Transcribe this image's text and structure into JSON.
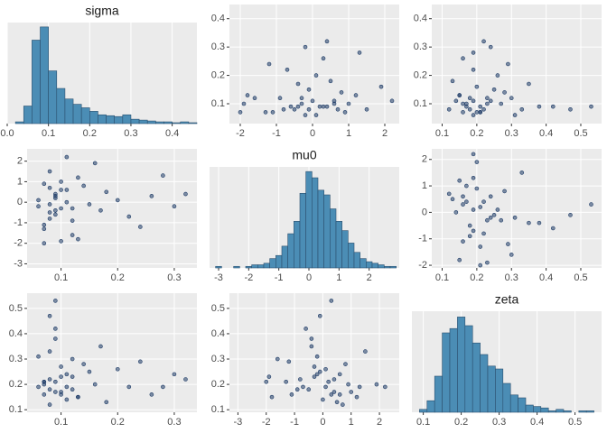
{
  "chart_data": [
    {
      "type": "histogram",
      "title": "sigma",
      "color": "#4b8db5",
      "edge_color": "#2b4f6e",
      "bins": [
        0.02,
        0.04,
        0.06,
        0.08,
        0.1,
        0.12,
        0.14,
        0.16,
        0.18,
        0.2,
        0.22,
        0.24,
        0.26,
        0.28,
        0.3,
        0.32,
        0.34,
        0.36,
        0.38,
        0.4,
        0.42,
        0.44,
        0.46
      ],
      "values": [
        2,
        20,
        95,
        110,
        60,
        40,
        28,
        22,
        18,
        14,
        10,
        9,
        8,
        10,
        5,
        4,
        3,
        2,
        2,
        1,
        2,
        1
      ],
      "xlim": [
        0,
        0.46
      ],
      "xticks": [
        {
          "value": 0,
          "label": "0.0"
        },
        0.1,
        0.2,
        0.3,
        0.4
      ],
      "ylim": [
        0,
        115
      ],
      "grid": true
    },
    {
      "type": "scatter",
      "color": "#1d3b66",
      "x": [
        -0.5,
        0.2,
        -1.1,
        0.6,
        0.1,
        -0.3,
        1.2,
        -0.8,
        0.4,
        -1.6,
        0.9,
        -0.1,
        0.5,
        -0.7,
        1.5,
        -1.9,
        0.3,
        -0.4,
        0.0,
        0.8,
        -1.3,
        -0.2,
        0.7,
        -0.9,
        1.9,
        -0.6,
        0.1,
        1.0,
        -0.2,
        -1.8,
        0.4,
        -0.1,
        2.2,
        -1.2,
        0.3,
        -2.0,
        -0.4,
        0.6,
        1.3,
        -0.3
      ],
      "y": [
        0.08,
        0.09,
        0.07,
        0.11,
        0.06,
        0.1,
        0.13,
        0.08,
        0.09,
        0.12,
        0.07,
        0.15,
        0.18,
        0.22,
        0.08,
        0.1,
        0.26,
        0.09,
        0.11,
        0.14,
        0.07,
        0.3,
        0.08,
        0.12,
        0.16,
        0.09,
        0.2,
        0.1,
        0.06,
        0.13,
        0.32,
        0.08,
        0.11,
        0.24,
        0.09,
        0.07,
        0.17,
        0.1,
        0.28,
        0.12
      ],
      "xlim": [
        -2.3,
        2.4
      ],
      "xticks": [
        -2,
        -1,
        0,
        1,
        2
      ],
      "ylim": [
        0.03,
        0.45
      ],
      "yticks": [
        0.1,
        0.2,
        0.3,
        0.4
      ],
      "grid": true
    },
    {
      "type": "scatter",
      "color": "#1d3b66",
      "x": [
        0.18,
        0.21,
        0.16,
        0.24,
        0.19,
        0.27,
        0.15,
        0.22,
        0.17,
        0.3,
        0.2,
        0.25,
        0.13,
        0.19,
        0.33,
        0.23,
        0.16,
        0.38,
        0.14,
        0.28,
        0.21,
        0.24,
        0.12,
        0.18,
        0.2,
        0.42,
        0.26,
        0.17,
        0.31,
        0.15,
        0.22,
        0.47,
        0.19,
        0.29,
        0.53,
        0.21,
        0.35,
        0.16,
        0.19,
        0.23
      ],
      "y": [
        0.08,
        0.09,
        0.07,
        0.11,
        0.06,
        0.1,
        0.13,
        0.08,
        0.09,
        0.12,
        0.07,
        0.15,
        0.18,
        0.22,
        0.08,
        0.1,
        0.26,
        0.09,
        0.11,
        0.14,
        0.07,
        0.3,
        0.08,
        0.12,
        0.16,
        0.09,
        0.2,
        0.1,
        0.06,
        0.13,
        0.32,
        0.08,
        0.11,
        0.24,
        0.09,
        0.07,
        0.17,
        0.1,
        0.28,
        0.12
      ],
      "xlim": [
        0.07,
        0.56
      ],
      "xticks": [
        0.1,
        0.2,
        0.3,
        0.4,
        0.5
      ],
      "ylim": [
        0.03,
        0.45
      ],
      "yticks": [
        0.1,
        0.2,
        0.3,
        0.4
      ],
      "grid": true
    },
    {
      "type": "scatter",
      "color": "#1d3b66",
      "x": [
        0.08,
        0.09,
        0.07,
        0.11,
        0.06,
        0.1,
        0.13,
        0.08,
        0.09,
        0.12,
        0.07,
        0.15,
        0.18,
        0.22,
        0.08,
        0.1,
        0.26,
        0.09,
        0.11,
        0.14,
        0.07,
        0.3,
        0.08,
        0.12,
        0.16,
        0.09,
        0.2,
        0.1,
        0.06,
        0.13,
        0.32,
        0.08,
        0.11,
        0.24,
        0.09,
        0.07,
        0.17,
        0.1,
        0.28,
        0.12
      ],
      "y": [
        -0.5,
        0.2,
        -1.1,
        0.6,
        0.1,
        -0.3,
        1.2,
        -0.8,
        0.4,
        -1.6,
        0.9,
        -0.1,
        0.5,
        -0.7,
        1.5,
        -1.9,
        0.3,
        -0.4,
        0.0,
        0.8,
        -1.3,
        -0.2,
        0.7,
        -0.9,
        1.9,
        -0.6,
        0.1,
        1.0,
        -0.2,
        -1.8,
        0.4,
        -0.1,
        2.2,
        -1.2,
        0.3,
        -2.0,
        -0.4,
        0.6,
        1.3,
        -0.3
      ],
      "xlim": [
        0.04,
        0.34
      ],
      "xticks": [
        0.1,
        0.2,
        0.3
      ],
      "ylim": [
        -3.2,
        2.6
      ],
      "yticks": [
        -3,
        -2,
        -1,
        0,
        1,
        2
      ],
      "grid": true
    },
    {
      "type": "histogram",
      "title": "mu0",
      "color": "#4b8db5",
      "edge_color": "#2b4f6e",
      "bins": [
        -3.1,
        -2.9,
        -2.7,
        -2.5,
        -2.3,
        -2.1,
        -1.9,
        -1.7,
        -1.5,
        -1.3,
        -1.1,
        -0.9,
        -0.7,
        -0.5,
        -0.3,
        -0.1,
        0.1,
        0.3,
        0.5,
        0.7,
        0.9,
        1.1,
        1.3,
        1.5,
        1.7,
        1.9,
        2.1,
        2.3,
        2.5,
        2.7,
        2.9
      ],
      "values": [
        1,
        0,
        0,
        1,
        0,
        1,
        2,
        2,
        3,
        6,
        8,
        14,
        22,
        30,
        48,
        62,
        58,
        50,
        47,
        38,
        30,
        24,
        16,
        10,
        6,
        4,
        3,
        2,
        1,
        1
      ],
      "xlim": [
        -3.3,
        3.0
      ],
      "xticks": [
        -3,
        -2,
        -1,
        0,
        1,
        2
      ],
      "ylim": [
        0,
        65
      ],
      "grid": true
    },
    {
      "type": "scatter",
      "color": "#1d3b66",
      "x": [
        0.18,
        0.21,
        0.16,
        0.24,
        0.19,
        0.27,
        0.15,
        0.22,
        0.17,
        0.3,
        0.2,
        0.25,
        0.13,
        0.19,
        0.33,
        0.23,
        0.16,
        0.38,
        0.14,
        0.28,
        0.21,
        0.24,
        0.12,
        0.18,
        0.2,
        0.42,
        0.26,
        0.17,
        0.31,
        0.15,
        0.22,
        0.47,
        0.19,
        0.29,
        0.53,
        0.21,
        0.35,
        0.16,
        0.19,
        0.23
      ],
      "y": [
        -0.5,
        0.2,
        -1.1,
        0.6,
        0.1,
        -0.3,
        1.2,
        -0.8,
        0.4,
        -1.6,
        0.9,
        -0.1,
        0.5,
        -0.7,
        1.5,
        -1.9,
        0.3,
        -0.4,
        0.0,
        0.8,
        -1.3,
        -0.2,
        0.7,
        -0.9,
        1.9,
        -0.6,
        0.1,
        1.0,
        -0.2,
        -1.8,
        0.4,
        -0.1,
        2.2,
        -1.2,
        0.3,
        -2.0,
        -0.4,
        0.6,
        1.3,
        -0.3
      ],
      "xlim": [
        0.07,
        0.56
      ],
      "xticks": [
        0.1,
        0.2,
        0.3,
        0.4,
        0.5
      ],
      "ylim": [
        -2.1,
        2.4
      ],
      "yticks": [
        -2,
        -1,
        0,
        1,
        2
      ],
      "grid": true
    },
    {
      "type": "scatter",
      "color": "#1d3b66",
      "x": [
        0.08,
        0.09,
        0.07,
        0.11,
        0.06,
        0.1,
        0.13,
        0.08,
        0.09,
        0.12,
        0.07,
        0.15,
        0.18,
        0.22,
        0.08,
        0.1,
        0.26,
        0.09,
        0.11,
        0.14,
        0.07,
        0.3,
        0.08,
        0.12,
        0.16,
        0.09,
        0.2,
        0.1,
        0.06,
        0.13,
        0.32,
        0.08,
        0.11,
        0.24,
        0.09,
        0.07,
        0.17,
        0.1,
        0.28,
        0.12
      ],
      "y": [
        0.18,
        0.21,
        0.16,
        0.24,
        0.19,
        0.27,
        0.15,
        0.22,
        0.17,
        0.3,
        0.2,
        0.25,
        0.13,
        0.19,
        0.33,
        0.23,
        0.16,
        0.38,
        0.14,
        0.28,
        0.21,
        0.24,
        0.12,
        0.18,
        0.2,
        0.42,
        0.26,
        0.17,
        0.31,
        0.15,
        0.22,
        0.47,
        0.19,
        0.29,
        0.53,
        0.21,
        0.35,
        0.16,
        0.19,
        0.23
      ],
      "xlim": [
        0.04,
        0.34
      ],
      "xticks": [
        0.1,
        0.2,
        0.3
      ],
      "ylim": [
        0.09,
        0.56
      ],
      "yticks": [
        0.1,
        0.2,
        0.3,
        0.4,
        0.5
      ],
      "grid": true
    },
    {
      "type": "scatter",
      "color": "#1d3b66",
      "x": [
        -0.5,
        0.2,
        -1.1,
        0.6,
        0.1,
        -0.3,
        1.2,
        -0.8,
        0.4,
        -1.6,
        0.9,
        -0.1,
        0.5,
        -0.7,
        1.5,
        -1.9,
        0.3,
        -0.4,
        0.0,
        0.8,
        -1.3,
        -0.2,
        0.7,
        -0.9,
        1.9,
        -0.6,
        0.1,
        1.0,
        -0.2,
        -1.8,
        0.4,
        -0.1,
        2.2,
        -1.2,
        0.3,
        -2.0,
        -0.4,
        0.6,
        1.3,
        -0.3
      ],
      "y": [
        0.18,
        0.21,
        0.16,
        0.24,
        0.19,
        0.27,
        0.15,
        0.22,
        0.17,
        0.3,
        0.2,
        0.25,
        0.13,
        0.19,
        0.33,
        0.23,
        0.16,
        0.38,
        0.14,
        0.28,
        0.21,
        0.24,
        0.12,
        0.18,
        0.2,
        0.42,
        0.26,
        0.17,
        0.31,
        0.15,
        0.22,
        0.47,
        0.19,
        0.29,
        0.53,
        0.21,
        0.35,
        0.16,
        0.19,
        0.23
      ],
      "xlim": [
        -3.3,
        2.7
      ],
      "xticks": [
        -3,
        -2,
        -1,
        0,
        1,
        2
      ],
      "ylim": [
        0.09,
        0.56
      ],
      "yticks": [
        0.1,
        0.2,
        0.3,
        0.4,
        0.5
      ],
      "grid": true
    },
    {
      "type": "histogram",
      "title": "zeta",
      "color": "#4b8db5",
      "edge_color": "#2b4f6e",
      "bins": [
        0.09,
        0.11,
        0.13,
        0.15,
        0.17,
        0.19,
        0.21,
        0.23,
        0.25,
        0.27,
        0.29,
        0.31,
        0.33,
        0.35,
        0.37,
        0.39,
        0.41,
        0.43,
        0.45,
        0.47,
        0.49,
        0.51,
        0.53,
        0.55
      ],
      "values": [
        2,
        8,
        25,
        55,
        58,
        66,
        60,
        48,
        40,
        32,
        30,
        20,
        12,
        10,
        5,
        4,
        3,
        1,
        2,
        1,
        0,
        1,
        1
      ],
      "xlim": [
        0.07,
        0.57
      ],
      "xticks": [
        0.1,
        0.2,
        0.3,
        0.4,
        0.5
      ],
      "ylim": [
        0,
        70
      ],
      "grid": true
    }
  ]
}
